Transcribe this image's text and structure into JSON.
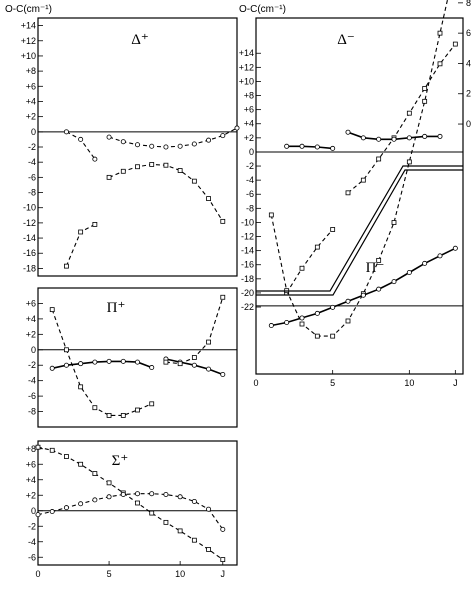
{
  "chart_data": [
    {
      "type": "line",
      "title": "",
      "panel_label": "Δ⁺",
      "axis_title": "O-C(cm⁻¹)",
      "xlabel": "",
      "ylabel": "",
      "xlim": [
        0,
        14
      ],
      "ylim": [
        -19,
        15
      ],
      "x_ticks": [],
      "x_tick_labels": [],
      "y_ticks": [
        14,
        12,
        10,
        8,
        6,
        4,
        2,
        0,
        -2,
        -4,
        -6,
        -8,
        -10,
        -12,
        -14,
        -16,
        -18
      ],
      "y_tick_labels": [
        "+14",
        "+12",
        "+10",
        "+8",
        "+6",
        "+4",
        "+2",
        "0",
        "-2",
        "-4",
        "-6",
        "-8",
        "-10",
        "-12",
        "-14",
        "-16",
        "-18"
      ],
      "series": [
        {
          "style": "dashed",
          "marker": "circle",
          "x": [
            2,
            3,
            4
          ],
          "y": [
            0,
            -1.0,
            -3.6
          ]
        },
        {
          "style": "dashed",
          "marker": "square",
          "x": [
            2,
            3,
            4
          ],
          "y": [
            -17.7,
            -13.2,
            -12.2
          ]
        },
        {
          "style": "dashed",
          "marker": "circle",
          "x": [
            5,
            6,
            7,
            8,
            9,
            10,
            11,
            12,
            13,
            14
          ],
          "y": [
            -0.7,
            -1.3,
            -1.7,
            -1.9,
            -2.0,
            -1.9,
            -1.6,
            -1.1,
            -0.5,
            0.5
          ]
        },
        {
          "style": "dashed",
          "marker": "square",
          "x": [
            5,
            6,
            7,
            8,
            9,
            10,
            11,
            12,
            13
          ],
          "y": [
            -6.0,
            -5.2,
            -4.6,
            -4.3,
            -4.4,
            -5.1,
            -6.5,
            -8.8,
            -11.8
          ]
        }
      ]
    },
    {
      "type": "line",
      "title": "",
      "panel_label": "Δ⁻",
      "axis_title": "O-C(cm⁻¹)",
      "xlabel": "J",
      "ylabel": "",
      "xlim": [
        0,
        13.5
      ],
      "ylim": [
        -31.5,
        19
      ],
      "x_ticks": [
        0,
        5,
        10,
        13
      ],
      "x_tick_labels": [
        "0",
        "5",
        "10",
        "J"
      ],
      "y_ticks": [
        14,
        12,
        10,
        8,
        6,
        4,
        2,
        0,
        -2,
        -4,
        -6,
        -8,
        -10,
        -12,
        -14,
        -16,
        -18,
        -20,
        -22
      ],
      "y_tick_labels": [
        "+14",
        "+12",
        "+10",
        "+8",
        "+6",
        "+4",
        "+2",
        "0",
        "-2",
        "-4",
        "-6",
        "-8",
        "-10",
        "-12",
        "-14",
        "-16",
        "-18",
        "-20",
        "-22"
      ],
      "series": [
        {
          "style": "dashed",
          "marker": "square",
          "x": [
            6,
            7,
            8,
            9,
            10,
            11,
            12,
            13
          ],
          "y": [
            -5.8,
            -4.0,
            -1.0,
            2.0,
            5.5,
            9.0,
            12.5,
            15.3
          ]
        },
        {
          "style": "solid",
          "marker": "circle",
          "x": [
            2,
            3,
            4,
            5
          ],
          "y": [
            0.8,
            0.8,
            0.7,
            0.5
          ]
        },
        {
          "style": "solid",
          "marker": "circle",
          "x": [
            6,
            7,
            8,
            9,
            10,
            11,
            12
          ],
          "y": [
            2.8,
            2.0,
            1.8,
            1.8,
            2.0,
            2.2,
            2.2
          ]
        },
        {
          "style": "dashed",
          "marker": "square",
          "x": [
            2,
            3,
            4,
            5
          ],
          "y": [
            -20.0,
            -16.5,
            -13.5,
            -11.0
          ]
        }
      ]
    },
    {
      "type": "line",
      "title": "",
      "panel_label": "Π⁻",
      "axis_title": "",
      "xlabel": "J",
      "ylabel": "",
      "xlim": [
        0,
        13.5
      ],
      "ylim": [
        -4.5,
        9.5
      ],
      "x_ticks": [
        0,
        5,
        10,
        13
      ],
      "x_tick_labels": [
        "0",
        "5",
        "10",
        "J"
      ],
      "y_ticks": [
        6,
        4,
        2,
        0,
        -2,
        -4
      ],
      "y_tick_labels": [
        "+6",
        "+4",
        "+2",
        "0",
        "-2",
        "-4"
      ],
      "right_ticks": [
        8,
        6,
        4,
        2,
        0
      ],
      "right_tick_labels": [
        "8",
        "6",
        "4",
        "2",
        "0"
      ],
      "series": [
        {
          "style": "dashed",
          "marker": "square",
          "x": [
            1,
            2,
            3,
            4,
            5,
            6,
            7,
            8,
            9,
            10,
            11,
            12,
            13
          ],
          "y": [
            6.0,
            1.0,
            -1.2,
            -2.0,
            -2.0,
            -1.0,
            0.8,
            3.0,
            5.5,
            9.5,
            13.5,
            18.0,
            22.5
          ]
        },
        {
          "style": "solid",
          "marker": "circle",
          "x": [
            1,
            2,
            3,
            4,
            5,
            6,
            7,
            8,
            9,
            10,
            11,
            12,
            13
          ],
          "y": [
            -1.3,
            -1.1,
            -0.8,
            -0.5,
            -0.1,
            0.3,
            0.7,
            1.1,
            1.6,
            2.2,
            2.8,
            3.3,
            3.8
          ]
        }
      ]
    },
    {
      "type": "line",
      "title": "",
      "panel_label": "Π⁺",
      "axis_title": "",
      "xlabel": "",
      "ylabel": "",
      "xlim": [
        0,
        14
      ],
      "ylim": [
        -10,
        8
      ],
      "x_ticks": [],
      "x_tick_labels": [],
      "y_ticks": [
        6,
        4,
        2,
        0,
        -2,
        -4,
        -6,
        -8
      ],
      "y_tick_labels": [
        "+6",
        "+4",
        "+2",
        "0",
        "-2",
        "-4",
        "-6",
        "-8"
      ],
      "series": [
        {
          "style": "dashed",
          "marker": "square",
          "x": [
            1,
            2,
            3,
            4,
            5,
            6,
            7,
            8
          ],
          "y": [
            5.2,
            0,
            -4.8,
            -7.5,
            -8.5,
            -8.5,
            -7.8,
            -7.0
          ]
        },
        {
          "style": "solid",
          "marker": "circle",
          "x": [
            1,
            2,
            3,
            4,
            5,
            6,
            7,
            8
          ],
          "y": [
            -2.4,
            -2.0,
            -1.8,
            -1.6,
            -1.5,
            -1.5,
            -1.6,
            -2.3
          ]
        },
        {
          "style": "solid",
          "marker": "circle",
          "x": [
            9,
            10,
            11,
            12,
            13
          ],
          "y": [
            -1.2,
            -1.6,
            -2.0,
            -2.5,
            -3.2
          ]
        },
        {
          "style": "dashed",
          "marker": "square",
          "x": [
            9,
            10,
            11,
            12,
            13
          ],
          "y": [
            -1.6,
            -1.8,
            -1.0,
            1.0,
            6.8
          ]
        }
      ]
    },
    {
      "type": "line",
      "title": "",
      "panel_label": "Σ⁺",
      "axis_title": "",
      "xlabel": "J",
      "ylabel": "",
      "xlim": [
        0,
        14
      ],
      "ylim": [
        -7,
        9
      ],
      "x_ticks": [
        0,
        5,
        10,
        13
      ],
      "x_tick_labels": [
        "0",
        "5",
        "10",
        "J"
      ],
      "y_ticks": [
        8,
        6,
        4,
        2,
        0,
        -2,
        -4,
        -6
      ],
      "y_tick_labels": [
        "+8",
        "+6",
        "+4",
        "+2",
        "0",
        "-2",
        "-4",
        "-6"
      ],
      "series": [
        {
          "style": "dashed",
          "marker": "square",
          "x": [
            0,
            1,
            2,
            3,
            4,
            5,
            6,
            7,
            8,
            9,
            10,
            11,
            12,
            13
          ],
          "y": [
            8.2,
            7.8,
            7.0,
            6.0,
            4.8,
            3.6,
            2.3,
            1.0,
            -0.3,
            -1.5,
            -2.6,
            -3.8,
            -5.0,
            -6.3
          ]
        },
        {
          "style": "dashed",
          "marker": "circle",
          "x": [
            0,
            1,
            2,
            3,
            4,
            5,
            6,
            7,
            8,
            9,
            10,
            11,
            12,
            13
          ],
          "y": [
            -0.5,
            -0.1,
            0.4,
            0.9,
            1.4,
            1.8,
            2.1,
            2.2,
            2.2,
            2.1,
            1.8,
            1.2,
            0.2,
            -2.4
          ]
        }
      ]
    }
  ]
}
